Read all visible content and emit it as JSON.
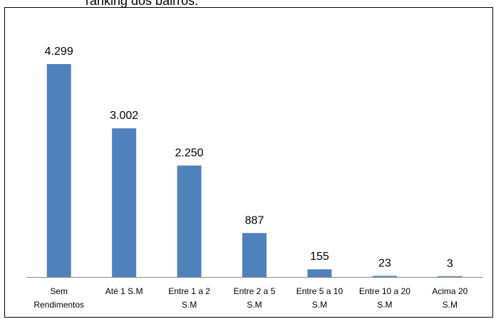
{
  "header_text": "ranking dos bairros.",
  "colors": {
    "bar": "#4F81BD",
    "axis": "#868686",
    "text": "#000000"
  },
  "chart_data": {
    "type": "bar",
    "categories": [
      [
        "Sem",
        "Rendimentos"
      ],
      [
        "Até 1 S.M"
      ],
      [
        "Entre 1 a 2",
        "S.M"
      ],
      [
        "Entre 2 a 5",
        "S.M"
      ],
      [
        "Entre 5 a 10",
        "S.M"
      ],
      [
        "Entre 10 a 20",
        "S.M"
      ],
      [
        "Acima 20",
        "S.M"
      ]
    ],
    "values": [
      4299,
      3002,
      2250,
      887,
      155,
      23,
      3
    ],
    "data_labels": [
      "4.299",
      "3.002",
      "2.250",
      "887",
      "155",
      "23",
      "3"
    ],
    "title": "",
    "xlabel": "",
    "ylabel": "",
    "ylim": [
      0,
      4299
    ],
    "grid": false,
    "legend": "none"
  }
}
